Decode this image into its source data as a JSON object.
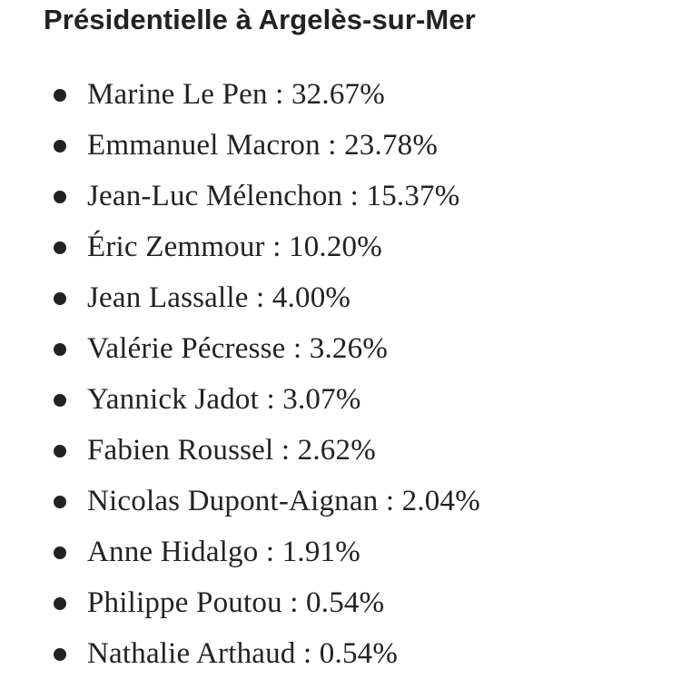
{
  "header": {
    "title": "Présidentielle à Argelès-sur-Mer"
  },
  "results": [
    {
      "text": "Marine Le Pen : 32.67%"
    },
    {
      "text": "Emmanuel Macron : 23.78%"
    },
    {
      "text": "Jean-Luc Mélenchon : 15.37%"
    },
    {
      "text": "Éric Zemmour : 10.20%"
    },
    {
      "text": "Jean Lassalle : 4.00%"
    },
    {
      "text": "Valérie Pécresse : 3.26%"
    },
    {
      "text": "Yannick Jadot : 3.07%"
    },
    {
      "text": "Fabien Roussel : 2.62%"
    },
    {
      "text": "Nicolas Dupont-Aignan : 2.04%"
    },
    {
      "text": "Anne Hidalgo : 1.91%"
    },
    {
      "text": "Philippe Poutou : 0.54%"
    },
    {
      "text": "Nathalie Arthaud : 0.54%"
    }
  ]
}
